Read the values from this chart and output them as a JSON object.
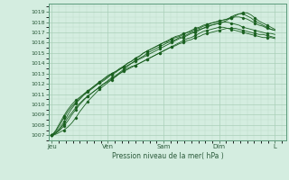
{
  "bg_color": "#d4ede0",
  "grid_color_major": "#aacfb8",
  "grid_color_minor": "#c0deca",
  "line_color": "#1a6020",
  "marker_color": "#1a6020",
  "xlabel_text": "Pression niveau de la mer( hPa )",
  "ylim": [
    1006.5,
    1019.8
  ],
  "yticks": [
    1007,
    1008,
    1009,
    1010,
    1011,
    1012,
    1013,
    1014,
    1015,
    1016,
    1017,
    1018,
    1019
  ],
  "xtick_positions": [
    0.0,
    1.0,
    2.0,
    3.0,
    4.0
  ],
  "xtick_labels": [
    "Jeu",
    "Ven",
    "Sam",
    "Dim",
    "L"
  ],
  "xlim": [
    -0.05,
    4.2
  ],
  "series": [
    [
      1007.0,
      1007.1,
      1007.3,
      1007.5,
      1007.8,
      1008.2,
      1008.7,
      1009.3,
      1009.8,
      1010.3,
      1010.7,
      1011.1,
      1011.5,
      1011.8,
      1012.1,
      1012.4,
      1012.7,
      1013.0,
      1013.3,
      1013.5,
      1013.7,
      1013.8,
      1014.0,
      1014.2,
      1014.4,
      1014.6,
      1014.8,
      1015.0,
      1015.2,
      1015.4,
      1015.6,
      1015.8,
      1016.0,
      1016.2,
      1016.4,
      1016.5,
      1016.7,
      1016.9,
      1017.1,
      1017.2,
      1017.3,
      1017.4,
      1017.5,
      1017.5,
      1017.4,
      1017.3,
      1017.2,
      1017.1,
      1017.0,
      1016.9,
      1016.8,
      1016.7,
      1016.6,
      1016.5,
      1016.5,
      1016.5,
      1016.4
    ],
    [
      1007.0,
      1007.2,
      1007.5,
      1007.9,
      1008.4,
      1009.0,
      1009.5,
      1010.0,
      1010.4,
      1010.8,
      1011.1,
      1011.4,
      1011.7,
      1012.0,
      1012.3,
      1012.6,
      1012.8,
      1013.1,
      1013.4,
      1013.7,
      1014.0,
      1014.2,
      1014.4,
      1014.6,
      1014.8,
      1015.0,
      1015.2,
      1015.4,
      1015.6,
      1015.8,
      1016.0,
      1016.2,
      1016.4,
      1016.5,
      1016.7,
      1016.9,
      1017.0,
      1017.2,
      1017.4,
      1017.5,
      1017.7,
      1017.8,
      1017.9,
      1018.0,
      1018.0,
      1017.9,
      1017.8,
      1017.7,
      1017.5,
      1017.4,
      1017.3,
      1017.2,
      1017.1,
      1017.0,
      1016.9,
      1016.9,
      1016.8
    ],
    [
      1007.0,
      1007.3,
      1007.7,
      1008.3,
      1009.0,
      1009.6,
      1010.1,
      1010.5,
      1010.9,
      1011.2,
      1011.5,
      1011.8,
      1012.1,
      1012.3,
      1012.6,
      1012.9,
      1013.1,
      1013.4,
      1013.7,
      1014.0,
      1014.2,
      1014.5,
      1014.7,
      1015.0,
      1015.2,
      1015.4,
      1015.6,
      1015.8,
      1016.0,
      1016.2,
      1016.4,
      1016.6,
      1016.7,
      1016.9,
      1017.0,
      1017.2,
      1017.4,
      1017.5,
      1017.7,
      1017.8,
      1017.9,
      1018.0,
      1018.1,
      1018.2,
      1018.3,
      1018.4,
      1018.5,
      1018.5,
      1018.4,
      1018.3,
      1018.1,
      1017.9,
      1017.7,
      1017.6,
      1017.4,
      1017.3,
      1017.2
    ],
    [
      1007.0,
      1007.4,
      1008.0,
      1008.7,
      1009.3,
      1009.8,
      1010.2,
      1010.6,
      1011.0,
      1011.3,
      1011.6,
      1011.9,
      1012.2,
      1012.4,
      1012.7,
      1013.0,
      1013.2,
      1013.5,
      1013.7,
      1014.0,
      1014.2,
      1014.5,
      1014.7,
      1015.0,
      1015.2,
      1015.4,
      1015.6,
      1015.8,
      1016.0,
      1016.1,
      1016.3,
      1016.5,
      1016.6,
      1016.8,
      1017.0,
      1017.1,
      1017.3,
      1017.4,
      1017.6,
      1017.7,
      1017.9,
      1018.0,
      1018.1,
      1018.2,
      1018.3,
      1018.5,
      1018.7,
      1018.8,
      1018.8,
      1018.6,
      1018.4,
      1018.1,
      1017.9,
      1017.7,
      1017.5,
      1017.3,
      1017.2
    ],
    [
      1007.0,
      1007.5,
      1008.2,
      1008.9,
      1009.5,
      1010.0,
      1010.4,
      1010.7,
      1011.0,
      1011.3,
      1011.6,
      1011.9,
      1012.2,
      1012.5,
      1012.8,
      1013.0,
      1013.2,
      1013.4,
      1013.6,
      1013.8,
      1014.0,
      1014.3,
      1014.5,
      1014.7,
      1015.0,
      1015.2,
      1015.4,
      1015.6,
      1015.8,
      1016.0,
      1016.1,
      1016.3,
      1016.5,
      1016.6,
      1016.8,
      1017.0,
      1017.1,
      1017.3,
      1017.4,
      1017.6,
      1017.7,
      1017.8,
      1017.9,
      1018.0,
      1018.2,
      1018.4,
      1018.6,
      1018.8,
      1018.9,
      1018.9,
      1018.7,
      1018.4,
      1018.1,
      1017.9,
      1017.7,
      1017.5,
      1017.3
    ],
    [
      1007.0,
      1007.2,
      1007.6,
      1008.1,
      1008.7,
      1009.2,
      1009.7,
      1010.1,
      1010.5,
      1010.8,
      1011.1,
      1011.4,
      1011.7,
      1012.0,
      1012.2,
      1012.5,
      1012.7,
      1013.0,
      1013.2,
      1013.4,
      1013.6,
      1013.8,
      1014.0,
      1014.2,
      1014.4,
      1014.6,
      1014.8,
      1015.0,
      1015.2,
      1015.4,
      1015.6,
      1015.7,
      1015.9,
      1016.0,
      1016.2,
      1016.3,
      1016.5,
      1016.6,
      1016.8,
      1016.9,
      1017.0,
      1017.1,
      1017.2,
      1017.3,
      1017.4,
      1017.4,
      1017.4,
      1017.3,
      1017.2,
      1017.1,
      1017.0,
      1016.9,
      1016.8,
      1016.8,
      1016.7,
      1016.6,
      1016.5
    ]
  ]
}
